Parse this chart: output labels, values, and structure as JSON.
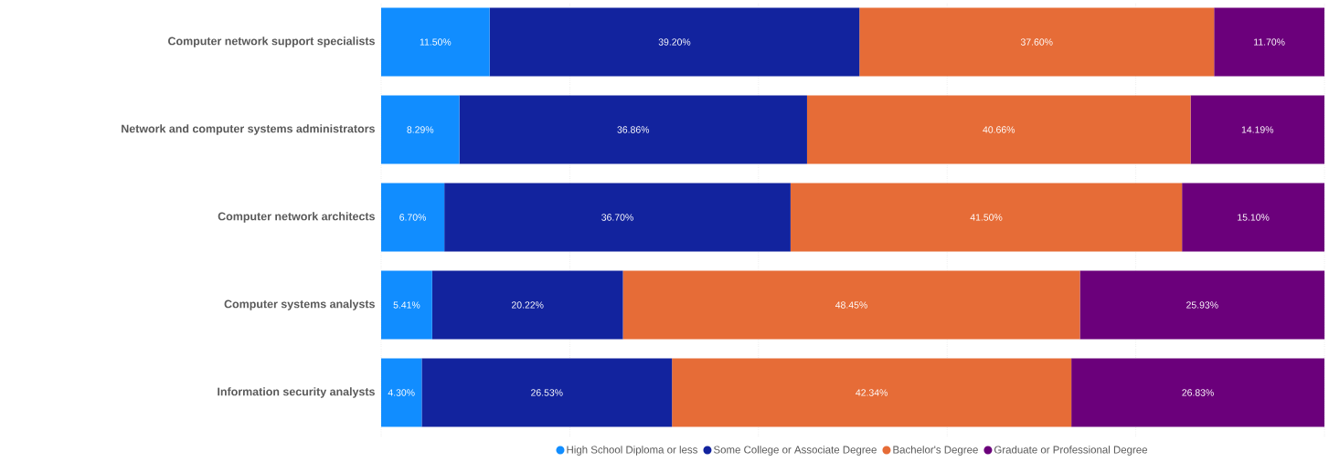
{
  "chart_data": {
    "type": "bar",
    "orientation": "horizontal",
    "stacked": true,
    "categories": [
      "Computer network support specialists",
      "Network and computer systems administrators",
      "Computer network architects",
      "Computer systems analysts",
      "Information security analysts"
    ],
    "series": [
      {
        "name": "High School Diploma or less",
        "color": "#118dff",
        "values": [
          11.5,
          8.29,
          6.7,
          5.41,
          4.3
        ],
        "value_labels": [
          "11.50%",
          "8.29%",
          "6.70%",
          "5.41%",
          "4.30%"
        ]
      },
      {
        "name": "Some College or Associate Degree",
        "color": "#12239e",
        "values": [
          39.2,
          36.86,
          36.7,
          20.22,
          26.53
        ],
        "value_labels": [
          "39.20%",
          "36.86%",
          "36.70%",
          "20.22%",
          "26.53%"
        ]
      },
      {
        "name": "Bachelor's Degree",
        "color": "#e66c37",
        "values": [
          37.6,
          40.66,
          41.5,
          48.45,
          42.34
        ],
        "value_labels": [
          "37.60%",
          "40.66%",
          "41.50%",
          "48.45%",
          "42.34%"
        ]
      },
      {
        "name": "Graduate or Professional Degree",
        "color": "#6b007b",
        "values": [
          11.7,
          14.19,
          15.1,
          25.93,
          26.83
        ],
        "value_labels": [
          "11.70%",
          "14.19%",
          "15.10%",
          "25.93%",
          "26.83%"
        ]
      }
    ],
    "xlim": [
      0,
      100
    ],
    "xticks": [
      {
        "value": 0,
        "label": null
      },
      {
        "value": 20,
        "label": null
      },
      {
        "value": 40,
        "label": null
      },
      {
        "value": 60,
        "label": null
      },
      {
        "value": 80,
        "label": null
      },
      {
        "value": 100,
        "label": null
      }
    ],
    "grid": "x",
    "legend": "bottom",
    "tick_labels": "y"
  }
}
